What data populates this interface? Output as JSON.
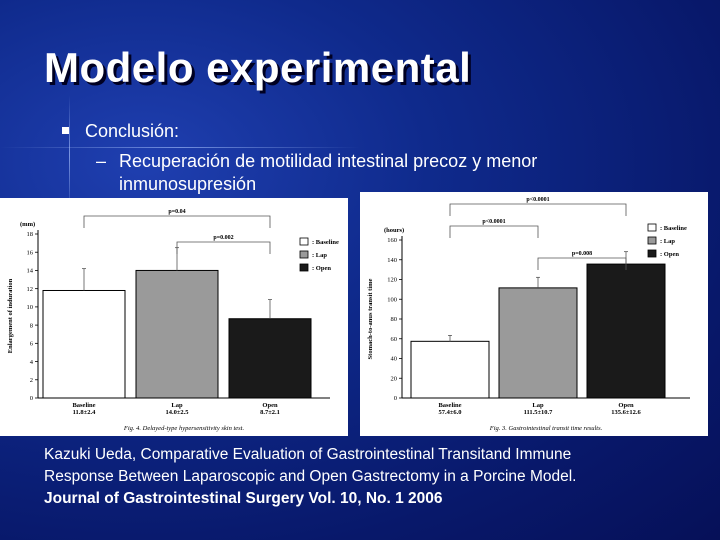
{
  "slide": {
    "title": "Modelo experimental",
    "bullet_level1": "Conclusión:",
    "bullet_level2_dash": "–",
    "bullet_level2": "Recuperación de motilidad intestinal precoz y menor inmunosupresión",
    "citation_line1": "Kazuki Ueda, Comparative Evaluation of Gastrointestinal Transitand Immune",
    "citation_line2": "Response Between Laparoscopic and Open Gastrectomy in a Porcine Model.",
    "citation_line3": "Journal of Gastrointestinal Surgery Vol. 10, No. 1 2006"
  },
  "colors": {
    "background": "#0f2a8c",
    "text": "#ffffff"
  },
  "chart_data": [
    {
      "type": "bar",
      "caption": "Fig. 4. Delayed-type hypersensitivity skin test.",
      "ylabel": "Enlargement of induration",
      "yunit": "(mm)",
      "ylim": [
        0,
        18
      ],
      "yticks": [
        0,
        2,
        4,
        6,
        8,
        10,
        12,
        14,
        16,
        18
      ],
      "categories": [
        "Baseline",
        "Lap",
        "Open"
      ],
      "category_sublabels": [
        "11.8±2.4",
        "14.0±2.5",
        "8.7±2.1"
      ],
      "values": [
        11.8,
        14.0,
        8.7
      ],
      "errors": [
        2.4,
        2.5,
        2.1
      ],
      "fills": [
        "#ffffff",
        "#9a9a9a",
        "#1a1a1a"
      ],
      "legend": [
        ": Baseline",
        ": Lap",
        ": Open"
      ],
      "legend_position": "top-right",
      "significance": [
        {
          "pair": [
            0,
            2
          ],
          "label": "p=0.04"
        },
        {
          "pair": [
            1,
            2
          ],
          "label": "p=0.002"
        }
      ]
    },
    {
      "type": "bar",
      "caption": "Fig. 3. Gastrointestinal transit time results.",
      "ylabel": "Stomach-to-anus transit time",
      "yunit": "(hours)",
      "ylim": [
        0,
        160
      ],
      "yticks": [
        0,
        20,
        40,
        60,
        80,
        100,
        120,
        140,
        160
      ],
      "categories": [
        "Baseline",
        "Lap",
        "Open"
      ],
      "category_sublabels": [
        "57.4±6.0",
        "111.5±10.7",
        "135.6±12.6"
      ],
      "values": [
        57.4,
        111.5,
        135.6
      ],
      "errors": [
        6.0,
        10.7,
        12.6
      ],
      "fills": [
        "#ffffff",
        "#9a9a9a",
        "#1a1a1a"
      ],
      "legend": [
        ": Baseline",
        ": Lap",
        ": Open"
      ],
      "legend_position": "top-right",
      "significance": [
        {
          "pair": [
            0,
            2
          ],
          "label": "p<0.0001"
        },
        {
          "pair": [
            0,
            1
          ],
          "label": "p<0.0001"
        },
        {
          "pair": [
            1,
            2
          ],
          "label": "p=0.008"
        }
      ]
    }
  ]
}
